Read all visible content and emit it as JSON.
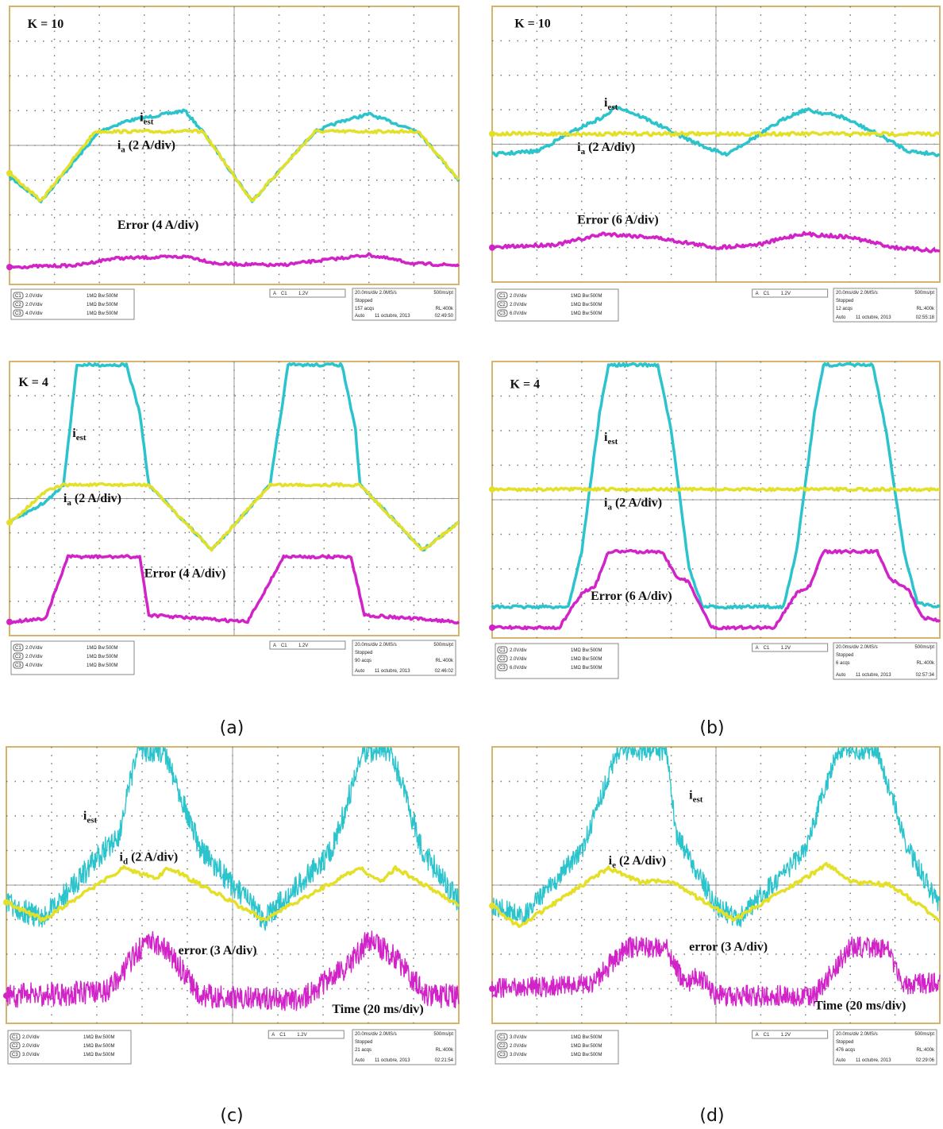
{
  "panels": [
    {
      "k": "K = 10",
      "labels": [
        {
          "main": "i",
          "sub": "est"
        },
        {
          "main": "i",
          "sub": "a",
          "rest": " (2 A/div)"
        },
        {
          "main": "Error (4 A/div)"
        }
      ],
      "status": {
        "channels": [
          [
            "C1",
            "2.0V/div",
            "1MΩ Bw:500M"
          ],
          [
            "C2",
            "2.0V/div",
            "1MΩ Bw:500M"
          ],
          [
            "C3",
            "4.0V/div",
            "1MΩ Bw:500M"
          ]
        ],
        "trigger": [
          "A",
          "C1",
          "1.2V"
        ],
        "timebase": "20.0ms/div 2.0MS/s",
        "rate": "500ms/pt",
        "state": "Stopped",
        "acqs": "157 acqs",
        "rl": "RL:400k",
        "mode": "Auto",
        "date": "11 octubre, 2013",
        "time": "02:49:50"
      }
    },
    {
      "k": "K = 10",
      "labels": [
        {
          "main": "i",
          "sub": "est"
        },
        {
          "main": "i",
          "sub": "a",
          "rest": " (2 A/div)"
        },
        {
          "main": "Error (6 A/div)"
        }
      ],
      "status": {
        "channels": [
          [
            "C1",
            "2.0V/div",
            "1MΩ Bw:500M"
          ],
          [
            "C2",
            "2.0V/div",
            "1MΩ Bw:500M"
          ],
          [
            "C3",
            "6.0V/div",
            "1MΩ Bw:500M"
          ]
        ],
        "trigger": [
          "A",
          "C1",
          "1.2V"
        ],
        "timebase": "20.0ms/div 2.0MS/s",
        "rate": "500ms/pt",
        "state": "Stopped",
        "acqs": "12 acqs",
        "rl": "RL:400k",
        "mode": "Auto",
        "date": "11 octubre, 2013",
        "time": "02:55:18"
      }
    },
    {
      "k": "K = 4",
      "labels": [
        {
          "main": "i",
          "sub": "est"
        },
        {
          "main": "i",
          "sub": "a",
          "rest": " (2 A/div)"
        },
        {
          "main": "Error (4 A/div)"
        }
      ],
      "status": {
        "channels": [
          [
            "C1",
            "2.0V/div",
            "1MΩ Bw:500M"
          ],
          [
            "C2",
            "2.0V/div",
            "1MΩ Bw:500M"
          ],
          [
            "C3",
            "4.0V/div",
            "1MΩ Bw:500M"
          ]
        ],
        "trigger": [
          "A",
          "C1",
          "1.2V"
        ],
        "timebase": "20.0ms/div 2.0MS/s",
        "rate": "500ms/pt",
        "state": "Stopped",
        "acqs": "90 acqs",
        "rl": "RL:400k",
        "mode": "Auto",
        "date": "11 octubre, 2013",
        "time": "02:46:02"
      }
    },
    {
      "k": "K = 4",
      "labels": [
        {
          "main": "i",
          "sub": "est"
        },
        {
          "main": "i",
          "sub": "a",
          "rest": " (2 A/div)"
        },
        {
          "main": "Error (6 A/div)"
        }
      ],
      "status": {
        "channels": [
          [
            "C1",
            "2.0V/div",
            "1MΩ Bw:500M"
          ],
          [
            "C2",
            "2.0V/div",
            "1MΩ Bw:500M"
          ],
          [
            "C3",
            "6.0V/div",
            "1MΩ Bw:500M"
          ]
        ],
        "trigger": [
          "A",
          "C1",
          "1.2V"
        ],
        "timebase": "20.0ms/div 2.0MS/s",
        "rate": "500ms/pt",
        "state": "Stopped",
        "acqs": "6 acqs",
        "rl": "RL:400k",
        "mode": "Auto",
        "date": "11 octubre, 2013",
        "time": "02:57:34"
      }
    },
    {
      "labels": [
        {
          "main": "i",
          "sub": "est"
        },
        {
          "main": "i",
          "sub": "d",
          "rest": " (2 A/div)"
        },
        {
          "main": "error (3 A/div)"
        },
        {
          "main": "Time (20 ms/div)"
        }
      ],
      "status": {
        "channels": [
          [
            "C1",
            "2.0V/div",
            "1MΩ Bw:500M"
          ],
          [
            "C2",
            "2.0V/div",
            "1MΩ Bw:500M"
          ],
          [
            "C3",
            "3.0V/div",
            "1MΩ Bw:500M"
          ]
        ],
        "trigger": [
          "A",
          "C1",
          "1.2V"
        ],
        "timebase": "20.0ms/div 2.0MS/s",
        "rate": "500ms/pt",
        "state": "Stopped",
        "acqs": "21 acqs",
        "rl": "RL:400k",
        "mode": "Auto",
        "date": "11 octubre, 2013",
        "time": "02:21:54"
      }
    },
    {
      "labels": [
        {
          "main": "i",
          "sub": "est"
        },
        {
          "main": "i",
          "sub": "e",
          "rest": " (2 A/div)"
        },
        {
          "main": "error (3 A/div)"
        },
        {
          "main": "Time (20 ms/div)"
        }
      ],
      "status": {
        "channels": [
          [
            "C1",
            "3.0V/div",
            "1MΩ Bw:500M"
          ],
          [
            "C2",
            "2.0V/div",
            "1MΩ Bw:500M"
          ],
          [
            "C3",
            "3.0V/div",
            "1MΩ Bw:500M"
          ]
        ],
        "trigger": [
          "A",
          "C1",
          "1.2V"
        ],
        "timebase": "20.0ms/div 2.0MS/s",
        "rate": "500ms/pt",
        "state": "Stopped",
        "acqs": "476 acqs",
        "rl": "RL:400k",
        "mode": "Auto",
        "date": "11 octubre, 2013",
        "time": "02:29:06"
      }
    }
  ],
  "captions": [
    "(a)",
    "(b)",
    "(c)",
    "(d)"
  ]
}
